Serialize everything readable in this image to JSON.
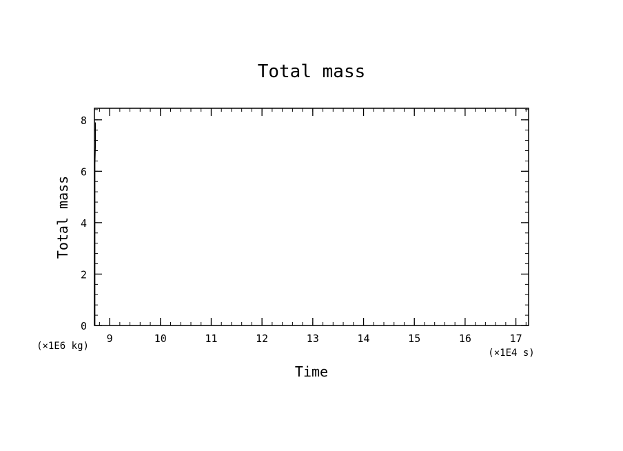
{
  "chart_data": {
    "type": "line",
    "title": "Total mass",
    "xlabel": "Time",
    "ylabel": "Total mass",
    "x_multiplier": "(×1E4 s)",
    "y_multiplier": "(×1E6 kg)",
    "xlim": [
      8.7,
      17.25
    ],
    "ylim": [
      0,
      8.45
    ],
    "x_ticks": [
      9,
      10,
      11,
      12,
      13,
      14,
      15,
      16,
      17
    ],
    "y_ticks": [
      0,
      2,
      4,
      6,
      8
    ],
    "x_minor_step": 0.2,
    "y_minor_step": 0.4,
    "grid": false,
    "series": [
      {
        "x": [
          8.71,
          8.71,
          8.72,
          8.72
        ],
        "y": [
          0,
          6.3,
          7.0,
          7.9
        ]
      }
    ]
  }
}
